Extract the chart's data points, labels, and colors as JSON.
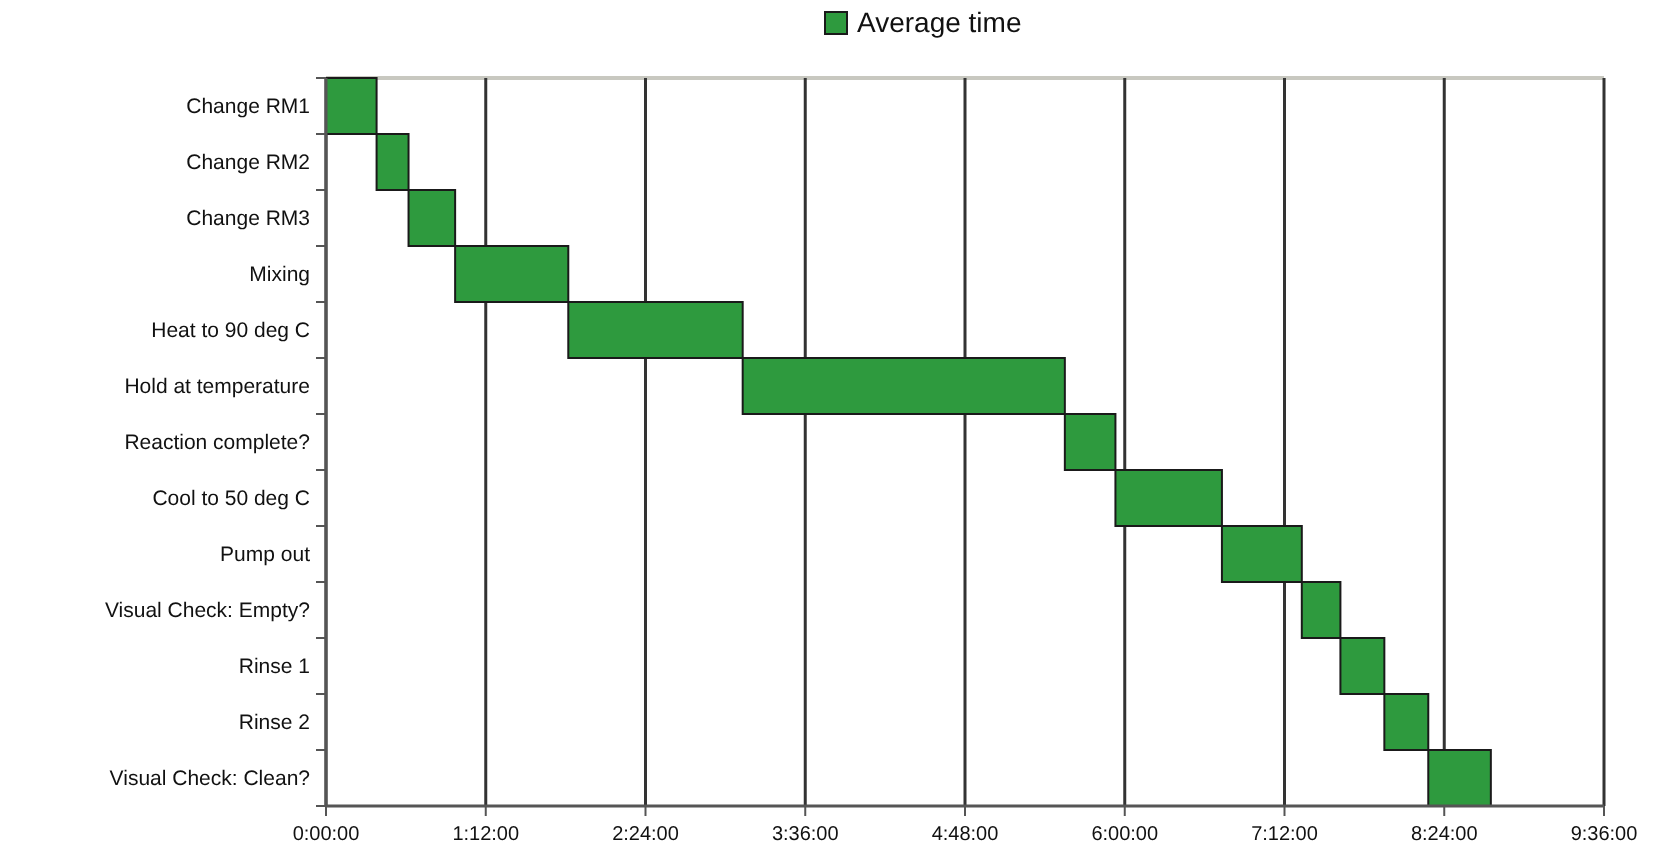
{
  "chart_data": {
    "type": "bar",
    "orientation": "horizontal",
    "categories": [
      "Change RM1",
      "Change RM2",
      "Change RM3",
      "Mixing",
      "Heat to 90 deg C",
      "Hold at temperature",
      "Reaction complete?",
      "Cool to 50 deg C",
      "Pump out",
      "Visual Check: Empty?",
      "Rinse 1",
      "Rinse 2",
      "Visual Check: Clean?"
    ],
    "series": [
      {
        "name": "Average time",
        "color": "#2e9a3e",
        "base": [
          0,
          0.38,
          0.62,
          0.97,
          1.82,
          3.13,
          5.55,
          5.93,
          6.73,
          7.33,
          7.62,
          7.95,
          8.28
        ],
        "values": [
          0.38,
          0.24,
          0.35,
          0.85,
          1.31,
          2.42,
          0.38,
          0.8,
          0.6,
          0.29,
          0.33,
          0.33,
          0.47
        ]
      }
    ],
    "xlim": [
      0,
      9.6
    ],
    "xticks": [
      {
        "value": 0,
        "label": "0:00:00"
      },
      {
        "value": 1.2,
        "label": "1:12:00"
      },
      {
        "value": 2.4,
        "label": "2:24:00"
      },
      {
        "value": 3.6,
        "label": "3:36:00"
      },
      {
        "value": 4.8,
        "label": "4:48:00"
      },
      {
        "value": 6,
        "label": "6:00:00"
      },
      {
        "value": 7.2,
        "label": "7:12:00"
      },
      {
        "value": 8.4,
        "label": "8:24:00"
      },
      {
        "value": 9.6,
        "label": "9:36:00"
      }
    ],
    "grid": "x",
    "legend": "top"
  }
}
